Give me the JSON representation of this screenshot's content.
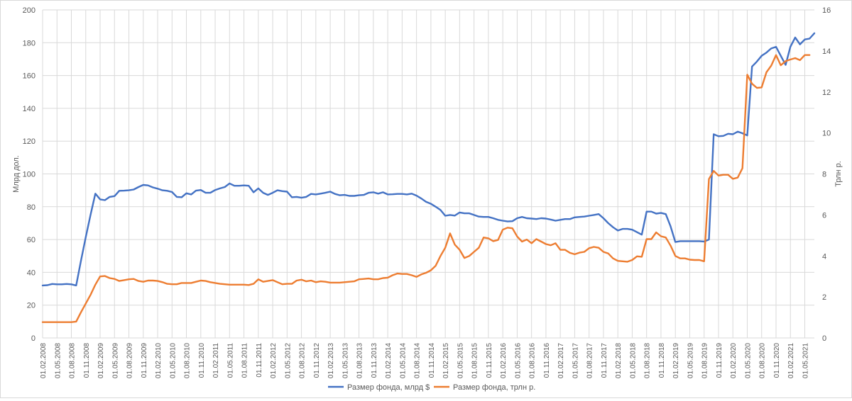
{
  "chart_data": {
    "type": "line",
    "title": "",
    "ylabel_left": "Млрд дол.",
    "ylabel_right": "Трлн р.",
    "ylim_left": [
      0,
      200
    ],
    "ylim_right": [
      0,
      16
    ],
    "yticks_left": [
      "0",
      "20",
      "40",
      "60",
      "80",
      "100",
      "120",
      "140",
      "160",
      "180",
      "200"
    ],
    "yticks_right": [
      "0",
      "2",
      "4",
      "6",
      "8",
      "10",
      "12",
      "14",
      "16"
    ],
    "xticks": [
      "01.02.2008",
      "01.05.2008",
      "01.08.2008",
      "01.11.2008",
      "01.02.2009",
      "01.05.2009",
      "01.08.2009",
      "01.11.2009",
      "01.02.2010",
      "01.05.2010",
      "01.08.2010",
      "01.11.2010",
      "01.02.2011",
      "01.05.2011",
      "01.08.2011",
      "01.11.2011",
      "01.02.2012",
      "01.05.2012",
      "01.08.2012",
      "01.11.2012",
      "01.02.2013",
      "01.05.2013",
      "01.08.2013",
      "01.11.2013",
      "01.02.2014",
      "01.05.2014",
      "01.08.2014",
      "01.11.2014",
      "01.02.2015",
      "01.05.2015",
      "01.08.2015",
      "01.11.2015",
      "01.02.2016",
      "01.05.2016",
      "01.08.2016",
      "01.11.2016",
      "01.02.2017",
      "01.05.2017",
      "01.08.2017",
      "01.11.2017",
      "01.02.2018",
      "01.05.2018",
      "01.08.2018",
      "01.11.2018",
      "01.02.2019",
      "01.05.2019",
      "01.08.2019",
      "01.11.2019",
      "01.02.2020",
      "01.05.2020",
      "01.08.2020",
      "01.11.2020",
      "01.02.2021",
      "01.05.2021"
    ],
    "grid": true,
    "legend_position": "bottom",
    "series": [
      {
        "name": "Размер фонда, млрд $",
        "axis": "left",
        "color": "#4472C4",
        "values": [
          32.0,
          32.2,
          32.9,
          32.7,
          32.7,
          32.9,
          32.7,
          32.0,
          47.0,
          61.5,
          75.0,
          88.0,
          84.5,
          84.0,
          86.0,
          86.5,
          89.7,
          89.8,
          90.0,
          90.5,
          92.0,
          93.3,
          93.0,
          91.8,
          91.0,
          90.0,
          89.7,
          89.0,
          86.0,
          85.8,
          88.2,
          87.5,
          89.8,
          90.2,
          88.5,
          88.5,
          90.2,
          91.2,
          92.0,
          94.2,
          92.8,
          92.8,
          93.0,
          92.8,
          88.8,
          91.2,
          88.5,
          87.2,
          88.5,
          90.0,
          89.5,
          89.2,
          85.8,
          86.0,
          85.5,
          86.0,
          87.8,
          87.5,
          88.0,
          88.5,
          89.2,
          87.8,
          87.0,
          87.2,
          86.6,
          86.6,
          87.0,
          87.2,
          88.5,
          88.8,
          88.0,
          88.8,
          87.5,
          87.6,
          87.8,
          87.8,
          87.5,
          88.0,
          86.8,
          85.0,
          83.0,
          81.8,
          80.0,
          78.0,
          74.5,
          75.0,
          74.6,
          76.5,
          76.0,
          76.0,
          75.0,
          74.0,
          73.8,
          73.8,
          73.0,
          72.0,
          71.5,
          71.0,
          71.2,
          73.0,
          73.8,
          73.0,
          72.8,
          72.5,
          73.0,
          72.8,
          72.2,
          71.5,
          72.0,
          72.5,
          72.5,
          73.5,
          73.8,
          74.0,
          74.5,
          75.0,
          75.5,
          73.0,
          70.0,
          67.5,
          65.5,
          66.5,
          66.5,
          66.0,
          64.5,
          63.0,
          77.0,
          77.0,
          75.8,
          76.2,
          75.5,
          68.0,
          58.5,
          59.0,
          59.0,
          59.0,
          59.0,
          59.0,
          58.8,
          60.0,
          124.2,
          123.0,
          123.2,
          124.5,
          124.2,
          125.8,
          124.8,
          123.5,
          165.5,
          168.5,
          172.0,
          174.0,
          176.5,
          177.5,
          172.0,
          166.5,
          177.5,
          183.2,
          179.0,
          182.0,
          182.5,
          185.8
        ]
      },
      {
        "name": "Размер фонда, трлн р.",
        "axis": "right",
        "color": "#ED7D31",
        "values": [
          0.77,
          0.77,
          0.77,
          0.77,
          0.77,
          0.77,
          0.77,
          0.8,
          1.25,
          1.68,
          2.1,
          2.6,
          3.0,
          3.02,
          2.92,
          2.88,
          2.78,
          2.82,
          2.86,
          2.88,
          2.78,
          2.74,
          2.8,
          2.8,
          2.78,
          2.72,
          2.64,
          2.62,
          2.62,
          2.68,
          2.68,
          2.68,
          2.74,
          2.8,
          2.78,
          2.72,
          2.68,
          2.64,
          2.62,
          2.6,
          2.6,
          2.6,
          2.6,
          2.58,
          2.64,
          2.86,
          2.74,
          2.78,
          2.82,
          2.72,
          2.62,
          2.64,
          2.64,
          2.8,
          2.84,
          2.76,
          2.8,
          2.72,
          2.76,
          2.74,
          2.7,
          2.7,
          2.7,
          2.72,
          2.74,
          2.76,
          2.86,
          2.88,
          2.9,
          2.86,
          2.86,
          2.92,
          2.94,
          3.06,
          3.14,
          3.12,
          3.12,
          3.06,
          2.98,
          3.1,
          3.18,
          3.3,
          3.52,
          4.0,
          4.4,
          5.1,
          4.55,
          4.3,
          3.9,
          4.0,
          4.2,
          4.4,
          4.9,
          4.86,
          4.72,
          4.78,
          5.28,
          5.38,
          5.35,
          4.95,
          4.7,
          4.8,
          4.62,
          4.82,
          4.7,
          4.58,
          4.52,
          4.62,
          4.3,
          4.3,
          4.15,
          4.08,
          4.16,
          4.2,
          4.38,
          4.44,
          4.4,
          4.2,
          4.12,
          3.88,
          3.76,
          3.74,
          3.72,
          3.8,
          3.98,
          3.96,
          4.82,
          4.82,
          5.15,
          4.96,
          4.9,
          4.5,
          4.0,
          3.88,
          3.88,
          3.82,
          3.8,
          3.8,
          3.74,
          7.75,
          8.15,
          7.92,
          7.96,
          7.96,
          7.76,
          7.82,
          8.28,
          12.84,
          12.4,
          12.2,
          12.22,
          12.96,
          13.28,
          13.8,
          13.3,
          13.5,
          13.58,
          13.65,
          13.55,
          13.8,
          13.8
        ]
      }
    ]
  }
}
